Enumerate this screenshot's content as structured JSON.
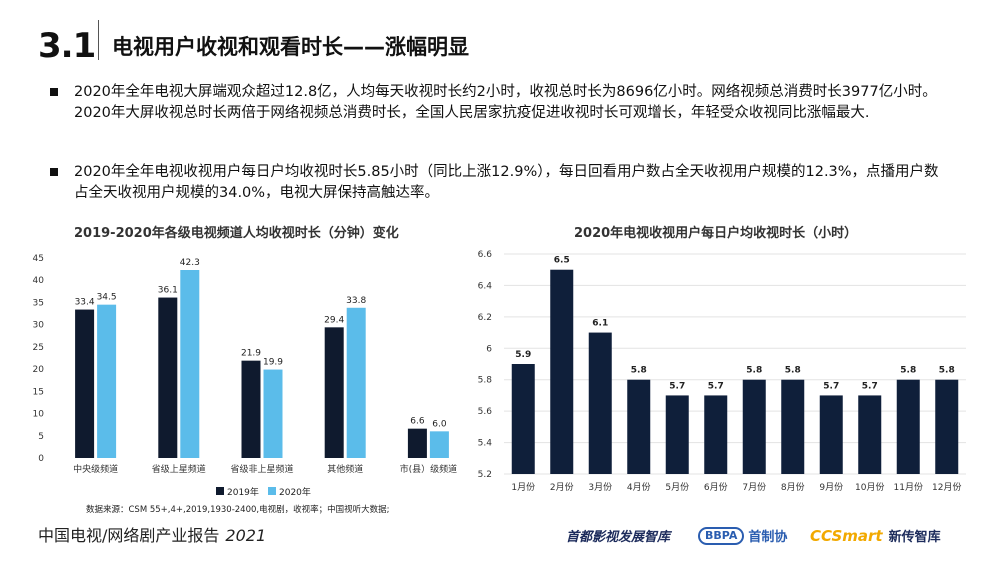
{
  "header": {
    "section_number": "3.1",
    "title": "电视用户收视和观看时长——涨幅明显"
  },
  "bullets": [
    "2020年全年电视大屏端观众超过12.8亿，人均每天收视时长约2小时，收视总时长为8696亿小时。网络视频总消费时长3977亿小时。2020年大屏收视总时长两倍于网络视频总消费时长，全国人民居家抗疫促进收视时长可观增长，年轻受众收视同比涨幅最大.",
    "2020年全年电视收视用户每日户均收视时长5.85小时（同比上涨12.9%），每日回看用户数占全天收视用户规模的12.3%，点播用户数占全天收视用户规模的34.0%，电视大屏保持高触达率。"
  ],
  "chart_data": [
    {
      "type": "bar",
      "title": "2019-2020年各级电视频道人均收视时长（分钟）变化",
      "categories": [
        "中央级频道",
        "省级上星频道",
        "省级非上星频道",
        "其他频道",
        "市(县）级频道"
      ],
      "series": [
        {
          "name": "2019年",
          "values": [
            33.4,
            36.1,
            21.9,
            29.4,
            6.6
          ],
          "labels": [
            "33.4",
            "36.1",
            "21.9",
            "29.4",
            "6.6"
          ],
          "color": "#0f1a2e"
        },
        {
          "name": "2020年",
          "values": [
            34.5,
            42.3,
            19.9,
            33.8,
            6.0
          ],
          "labels": [
            "34.5",
            "42.3",
            "19.9",
            "33.8",
            "6.0"
          ],
          "color": "#5bbcea"
        }
      ],
      "ylim": [
        0,
        45
      ],
      "yticks": [
        0,
        5,
        10,
        15,
        20,
        25,
        30,
        35,
        40,
        45
      ],
      "legend": "bottom-right",
      "grid": false
    },
    {
      "type": "bar",
      "title": "2020年电视收视用户每日户均收视时长（小时）",
      "categories": [
        "1月份",
        "2月份",
        "3月份",
        "4月份",
        "5月份",
        "6月份",
        "7月份",
        "8月份",
        "9月份",
        "10月份",
        "11月份",
        "12月份"
      ],
      "values": [
        5.9,
        6.5,
        6.1,
        5.8,
        5.7,
        5.7,
        5.8,
        5.8,
        5.7,
        5.7,
        5.8,
        5.8
      ],
      "ylim": [
        5.2,
        6.6
      ],
      "yticks": [
        "5.2",
        "5.4",
        "5.6",
        "5.8",
        "6",
        "6.2",
        "6.4",
        "6.6"
      ],
      "color": "#0f1f3a",
      "grid": true
    }
  ],
  "source": "数据来源：CSM 55+,4+,2019,1930-2400,电视剧，收视率；中国视听大数据;",
  "footer": {
    "report_title": "中国电视/网络剧产业报告",
    "year": "2021",
    "logo1": "首都影视发展智库",
    "logo2_badge": "BBPA",
    "logo2_text": "首制协",
    "logo3_brand": "CCSmart",
    "logo3_text": "新传智库"
  }
}
